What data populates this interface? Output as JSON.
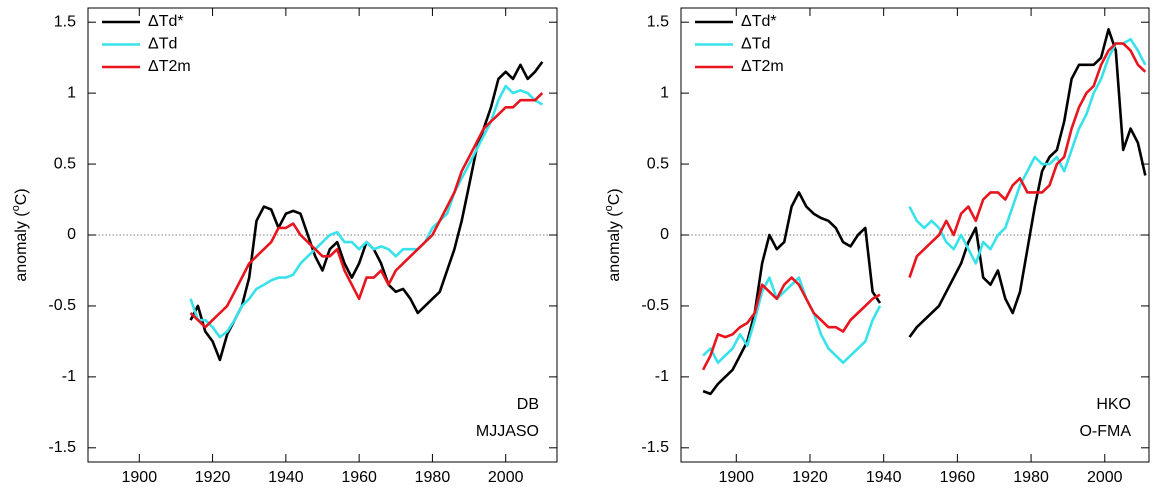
{
  "chart_data": [
    {
      "type": "line",
      "legend": "upper left",
      "zero_line": true,
      "ylabel": [
        "anomaly (",
        "o",
        "C)"
      ],
      "annotations": [
        "DB",
        "MJJASO"
      ],
      "xlim": [
        1886,
        2014
      ],
      "ylim": [
        -1.6,
        1.6
      ],
      "xticks": [
        1900,
        1920,
        1940,
        1960,
        1980,
        2000
      ],
      "yticks": [
        -1.5,
        -1,
        -0.5,
        0,
        0.5,
        1,
        1.5
      ],
      "x": [
        1914,
        1916,
        1918,
        1920,
        1922,
        1924,
        1926,
        1928,
        1930,
        1932,
        1934,
        1936,
        1938,
        1940,
        1942,
        1944,
        1946,
        1948,
        1950,
        1952,
        1954,
        1956,
        1958,
        1960,
        1962,
        1964,
        1966,
        1968,
        1970,
        1972,
        1974,
        1976,
        1978,
        1980,
        1982,
        1984,
        1986,
        1988,
        1990,
        1992,
        1994,
        1996,
        1998,
        2000,
        2002,
        2004,
        2006,
        2008,
        2010
      ],
      "series": [
        {
          "name": "ΔTd*",
          "color": "#000000",
          "values": [
            -0.6,
            -0.5,
            -0.68,
            -0.75,
            -0.88,
            -0.7,
            -0.6,
            -0.5,
            -0.3,
            0.1,
            0.2,
            0.18,
            0.05,
            0.15,
            0.17,
            0.15,
            0.0,
            -0.15,
            -0.25,
            -0.1,
            -0.05,
            -0.2,
            -0.3,
            -0.2,
            -0.05,
            -0.1,
            -0.2,
            -0.35,
            -0.4,
            -0.38,
            -0.45,
            -0.55,
            -0.5,
            -0.45,
            -0.4,
            -0.25,
            -0.1,
            0.1,
            0.35,
            0.6,
            0.75,
            0.9,
            1.1,
            1.15,
            1.1,
            1.2,
            1.1,
            1.15,
            1.22
          ]
        },
        {
          "name": "ΔTd",
          "color": "#38e2ea",
          "values": [
            -0.45,
            -0.6,
            -0.6,
            -0.65,
            -0.72,
            -0.68,
            -0.6,
            -0.5,
            -0.45,
            -0.38,
            -0.35,
            -0.32,
            -0.3,
            -0.3,
            -0.28,
            -0.2,
            -0.15,
            -0.1,
            -0.05,
            0.0,
            0.02,
            -0.05,
            -0.05,
            -0.1,
            -0.05,
            -0.1,
            -0.08,
            -0.1,
            -0.15,
            -0.1,
            -0.1,
            -0.1,
            -0.05,
            0.05,
            0.1,
            0.15,
            0.3,
            0.4,
            0.5,
            0.6,
            0.7,
            0.8,
            0.95,
            1.05,
            1.0,
            1.02,
            1.0,
            0.95,
            0.92
          ]
        },
        {
          "name": "ΔT2m",
          "color": "#e8141e",
          "values": [
            -0.55,
            -0.6,
            -0.65,
            -0.6,
            -0.55,
            -0.5,
            -0.4,
            -0.3,
            -0.2,
            -0.15,
            -0.1,
            -0.05,
            0.05,
            0.05,
            0.08,
            0.0,
            -0.05,
            -0.1,
            -0.15,
            -0.15,
            -0.1,
            -0.25,
            -0.35,
            -0.45,
            -0.3,
            -0.3,
            -0.25,
            -0.35,
            -0.25,
            -0.2,
            -0.15,
            -0.1,
            -0.05,
            0.0,
            0.1,
            0.2,
            0.3,
            0.45,
            0.55,
            0.65,
            0.75,
            0.8,
            0.85,
            0.9,
            0.9,
            0.95,
            0.95,
            0.95,
            1.0
          ]
        }
      ]
    },
    {
      "type": "line",
      "legend": "upper left",
      "zero_line": true,
      "ylabel": [
        "anomaly (",
        "o",
        "C)"
      ],
      "annotations": [
        "HKO",
        "O-FMA"
      ],
      "xlim": [
        1885,
        2012
      ],
      "ylim": [
        -1.6,
        1.6
      ],
      "xticks": [
        1900,
        1920,
        1940,
        1960,
        1980,
        2000
      ],
      "yticks": [
        -1.5,
        -1,
        -0.5,
        0,
        0.5,
        1,
        1.5
      ],
      "x": [
        1891,
        1893,
        1895,
        1897,
        1899,
        1901,
        1903,
        1905,
        1907,
        1909,
        1911,
        1913,
        1915,
        1917,
        1919,
        1921,
        1923,
        1925,
        1927,
        1929,
        1931,
        1933,
        1935,
        1937,
        1939,
        1941,
        1943,
        1945,
        1947,
        1949,
        1951,
        1953,
        1955,
        1957,
        1959,
        1961,
        1963,
        1965,
        1967,
        1969,
        1971,
        1973,
        1975,
        1977,
        1979,
        1981,
        1983,
        1985,
        1987,
        1989,
        1991,
        1993,
        1995,
        1997,
        1999,
        2001,
        2003,
        2005,
        2007,
        2009,
        2011
      ],
      "series": [
        {
          "name": "ΔTd*",
          "color": "#000000",
          "values": [
            -1.1,
            -1.12,
            -1.05,
            -1.0,
            -0.95,
            -0.85,
            -0.75,
            -0.55,
            -0.2,
            0.0,
            -0.1,
            -0.05,
            0.2,
            0.3,
            0.2,
            0.15,
            0.12,
            0.1,
            0.05,
            -0.05,
            -0.08,
            0.0,
            0.05,
            -0.4,
            -0.48,
            null,
            null,
            null,
            -0.72,
            -0.65,
            -0.6,
            -0.55,
            -0.5,
            -0.4,
            -0.3,
            -0.2,
            -0.05,
            0.05,
            -0.3,
            -0.35,
            -0.25,
            -0.45,
            -0.55,
            -0.4,
            -0.1,
            0.2,
            0.45,
            0.55,
            0.6,
            0.8,
            1.1,
            1.2,
            1.2,
            1.2,
            1.25,
            1.45,
            1.3,
            0.6,
            0.75,
            0.65,
            0.42
          ]
        },
        {
          "name": "ΔTd",
          "color": "#38e2ea",
          "values": [
            -0.85,
            -0.8,
            -0.9,
            -0.85,
            -0.8,
            -0.7,
            -0.78,
            -0.6,
            -0.4,
            -0.3,
            -0.45,
            -0.4,
            -0.35,
            -0.3,
            -0.45,
            -0.55,
            -0.7,
            -0.8,
            -0.85,
            -0.9,
            -0.85,
            -0.8,
            -0.75,
            -0.6,
            -0.5,
            null,
            null,
            null,
            0.2,
            0.1,
            0.05,
            0.1,
            0.05,
            -0.05,
            -0.1,
            0.0,
            -0.1,
            -0.2,
            -0.05,
            -0.1,
            0.0,
            0.05,
            0.2,
            0.35,
            0.45,
            0.55,
            0.5,
            0.5,
            0.55,
            0.45,
            0.6,
            0.75,
            0.85,
            1.0,
            1.1,
            1.25,
            1.35,
            1.35,
            1.38,
            1.3,
            1.2
          ]
        },
        {
          "name": "ΔT2m",
          "color": "#e8141e",
          "values": [
            -0.95,
            -0.85,
            -0.7,
            -0.72,
            -0.7,
            -0.65,
            -0.62,
            -0.55,
            -0.35,
            -0.4,
            -0.45,
            -0.35,
            -0.3,
            -0.35,
            -0.45,
            -0.55,
            -0.6,
            -0.65,
            -0.65,
            -0.68,
            -0.6,
            -0.55,
            -0.5,
            -0.45,
            -0.42,
            null,
            null,
            null,
            -0.3,
            -0.15,
            -0.1,
            -0.05,
            0.0,
            0.1,
            0.0,
            0.15,
            0.2,
            0.1,
            0.25,
            0.3,
            0.3,
            0.25,
            0.35,
            0.4,
            0.3,
            0.3,
            0.3,
            0.35,
            0.5,
            0.55,
            0.75,
            0.9,
            1.0,
            1.05,
            1.2,
            1.3,
            1.35,
            1.35,
            1.3,
            1.2,
            1.15
          ]
        }
      ]
    }
  ]
}
